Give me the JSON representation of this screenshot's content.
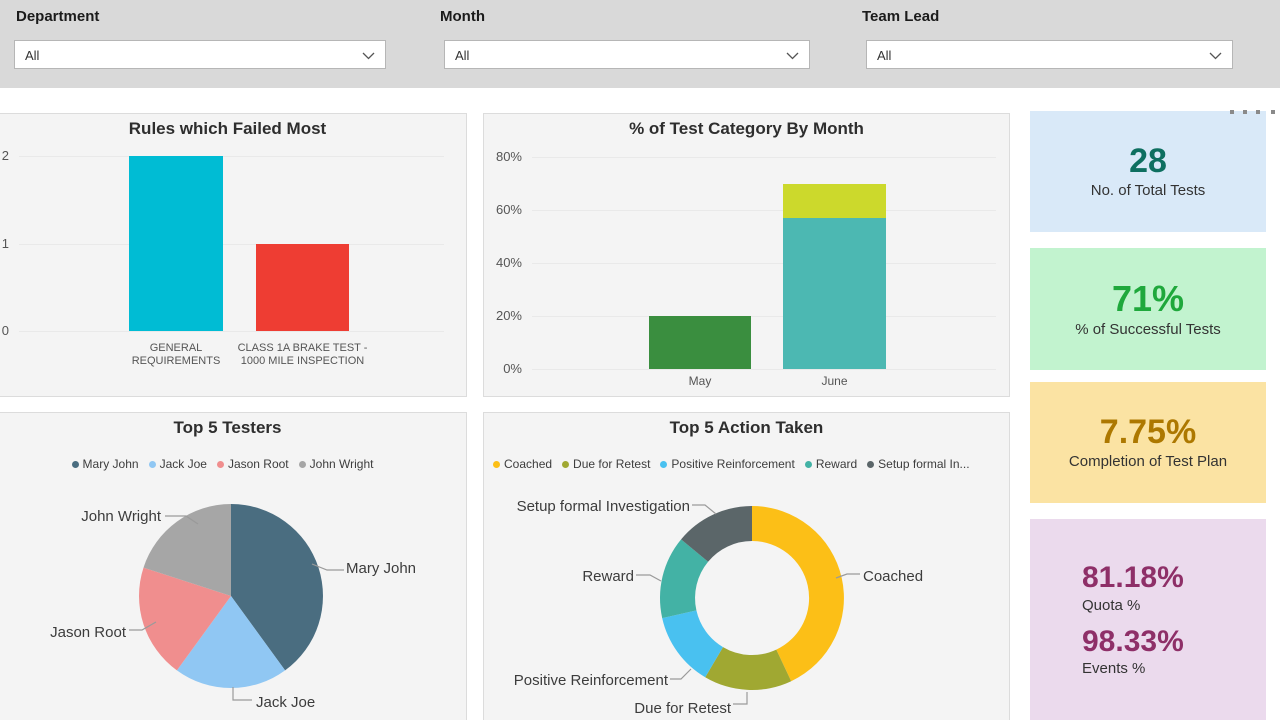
{
  "filters": [
    {
      "label": "Department",
      "value": "All"
    },
    {
      "label": "Month",
      "value": "All"
    },
    {
      "label": "Team Lead",
      "value": "All"
    }
  ],
  "theme": {
    "filter_bar_bg": "#d9d9d9",
    "page_bg": "#ffffff",
    "panel_bg": "#f4f4f4",
    "panel_border": "#dcdcdc",
    "axis_text": "#555555",
    "gridline": "#e9e9e9",
    "title_text": "#2e2e2e",
    "callout_text": "#3c3c3c"
  },
  "icons": {
    "dropdown_chevron": "chevron-down-icon",
    "more_options": "more-options-dots-icon"
  },
  "chart_data": [
    {
      "type": "bar",
      "title": "Rules which Failed Most",
      "categories": [
        "GENERAL REQUIREMENTS",
        "CLASS 1A BRAKE TEST - 1000 MILE INSPECTION"
      ],
      "values": [
        2,
        1
      ],
      "bar_colors": [
        "#00bcd4",
        "#ee3d33"
      ],
      "ylim": [
        0,
        2
      ],
      "yticks": [
        2,
        1,
        0
      ],
      "grid": true,
      "legend": "none"
    },
    {
      "type": "bar",
      "stacked": true,
      "title": "% of Test Category By Month",
      "categories": [
        "May",
        "June"
      ],
      "series": [
        {
          "name": "unlabeled-green",
          "color": "#3a8e3f",
          "values": [
            20,
            0
          ]
        },
        {
          "name": "unlabeled-teal",
          "color": "#4cb8b2",
          "values": [
            0,
            57
          ]
        },
        {
          "name": "unlabeled-yellow-green",
          "color": "#ccd92c",
          "values": [
            0,
            13
          ]
        }
      ],
      "yticks": [
        "80%",
        "60%",
        "40%",
        "20%",
        "0%"
      ],
      "ylim": [
        0,
        80
      ],
      "grid": true,
      "legend": "none"
    },
    {
      "type": "pie",
      "title": "Top 5 Testers",
      "slices": [
        {
          "label": "Mary John",
          "value": 40,
          "color": "#4a6d80"
        },
        {
          "label": "Jack Joe",
          "value": 20,
          "color": "#90c7f3"
        },
        {
          "label": "Jason Root",
          "value": 20,
          "color": "#f08e8e"
        },
        {
          "label": "John Wright",
          "value": 20,
          "color": "#a6a6a6"
        }
      ],
      "legend_position": "top"
    },
    {
      "type": "donut",
      "title": "Top 5 Action Taken",
      "slices": [
        {
          "label": "Coached",
          "value": 43,
          "color": "#fcbf17"
        },
        {
          "label": "Due for Retest",
          "value": 15.5,
          "color": "#a0a832"
        },
        {
          "label": "Positive Reinforcement",
          "value": 13,
          "color": "#49c1f0"
        },
        {
          "label": "Reward",
          "value": 14.5,
          "color": "#43b2a5"
        },
        {
          "label": "Setup formal Investigation",
          "value": 14,
          "color": "#5b6669"
        }
      ],
      "legend_labels": [
        "Coached",
        "Due for Retest",
        "Positive Reinforcement",
        "Reward",
        "Setup formal In..."
      ],
      "legend_position": "top"
    }
  ],
  "kpi_cards": [
    {
      "value": "28",
      "label": "No. of Total Tests",
      "bg": "#d9e9f8",
      "value_color": "#0e6f60"
    },
    {
      "value": "71%",
      "label": "% of Successful Tests",
      "bg": "#c2f3cf",
      "value_color": "#1fa83c"
    },
    {
      "value": "7.75%",
      "label": "Completion of Test Plan",
      "bg": "#fbe3a3",
      "value_color": "#ad7800"
    },
    {
      "bg": "#ebdaed",
      "value_color": "#8e2f68",
      "metrics": [
        {
          "value": "81.18%",
          "label": "Quota %"
        },
        {
          "value": "98.33%",
          "label": "Events %"
        }
      ]
    }
  ]
}
